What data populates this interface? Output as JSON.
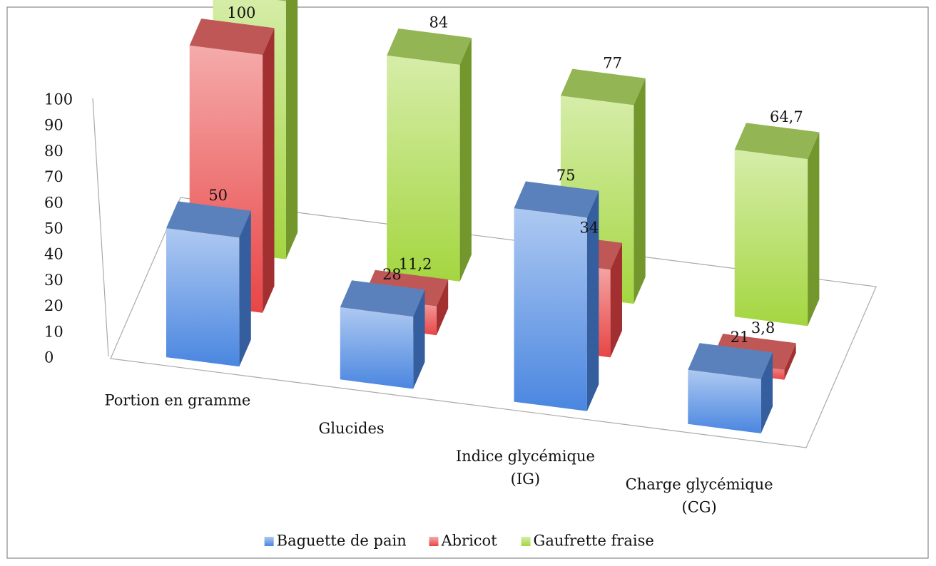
{
  "chart_data": {
    "type": "bar3d",
    "categories": [
      "Portion en gramme",
      "Glucides",
      "Indice glycémique\n(IG)",
      "Charge glycémique\n(CG)"
    ],
    "series": [
      {
        "name": "Baguette de pain",
        "color": "#4a86e0",
        "values": [
          50,
          28,
          75,
          21
        ]
      },
      {
        "name": "Abricot",
        "color": "#e84545",
        "values": [
          100,
          11.2,
          34,
          3.8
        ],
        "value_labels": [
          "100",
          "11,2",
          "34",
          "3,8"
        ]
      },
      {
        "name": "Gaufrette fraise",
        "color": "#a4d640",
        "values": [
          100,
          84,
          77,
          64.7
        ],
        "value_labels": [
          "100",
          "84",
          "77",
          "64,7"
        ]
      }
    ],
    "ylim": [
      0,
      100
    ],
    "yticks": [
      0,
      10,
      20,
      30,
      40,
      50,
      60,
      70,
      80,
      90,
      100
    ],
    "legend": "bottom"
  }
}
